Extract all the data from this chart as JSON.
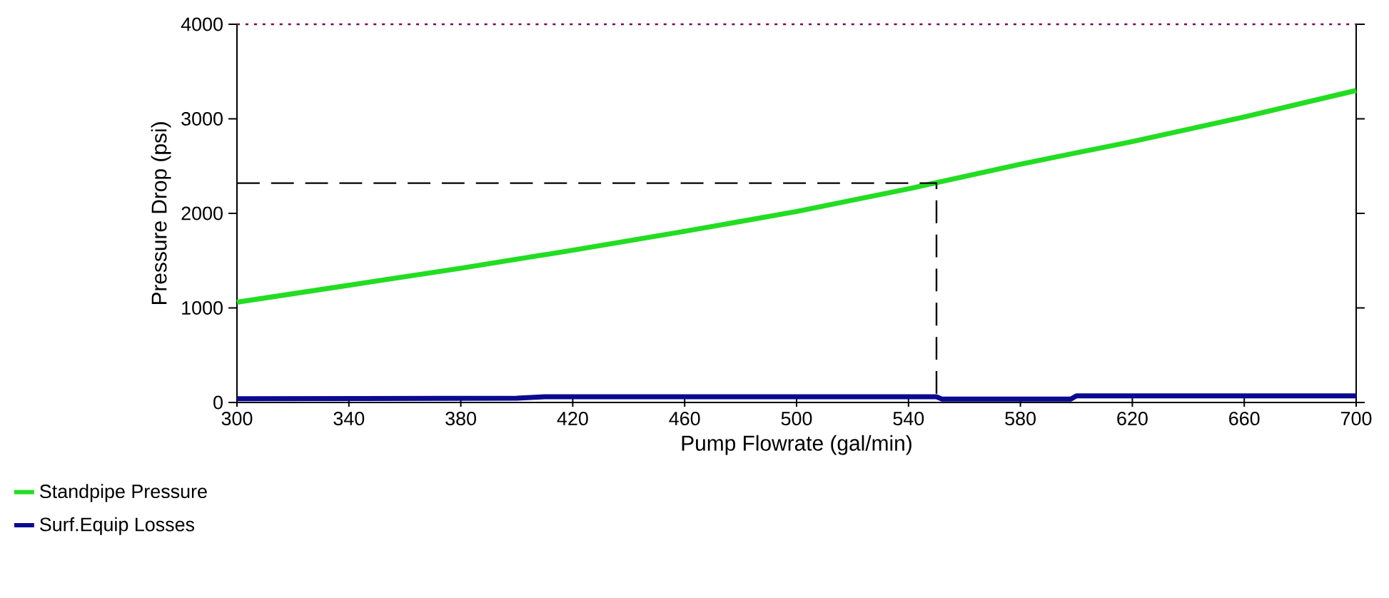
{
  "chart_data": {
    "type": "line",
    "xlabel": "Pump Flowrate (gal/min)",
    "ylabel": "Pressure Drop (psi)",
    "xlim": [
      300,
      700
    ],
    "ylim": [
      0,
      4000
    ],
    "xticks": [
      300,
      340,
      380,
      420,
      460,
      500,
      540,
      580,
      620,
      660,
      700
    ],
    "yticks": [
      0,
      1000,
      2000,
      3000,
      4000
    ],
    "series": [
      {
        "name": "Standpipe Pressure",
        "color": "#22dd22",
        "x": [
          300,
          340,
          380,
          420,
          460,
          500,
          540,
          580,
          620,
          660,
          700
        ],
        "values": [
          1060,
          1240,
          1420,
          1610,
          1810,
          2020,
          2260,
          2520,
          2760,
          3020,
          3300
        ]
      },
      {
        "name": "Surf.Equip Losses",
        "color": "#0a0a90",
        "x": [
          300,
          400,
          410,
          550,
          552,
          598,
          600,
          700
        ],
        "values": [
          40,
          45,
          60,
          60,
          35,
          35,
          70,
          70
        ]
      },
      {
        "color": "#000000",
        "line_style": "dashed",
        "x": [
          300,
          550,
          550
        ],
        "values": [
          2320,
          2320,
          0
        ]
      }
    ],
    "ref_lines": [
      {
        "axis": "y",
        "value": 4000,
        "color": "#800040",
        "line_style": "dotted"
      }
    ],
    "legend": "bottom left",
    "grid": false,
    "marker": "none"
  }
}
